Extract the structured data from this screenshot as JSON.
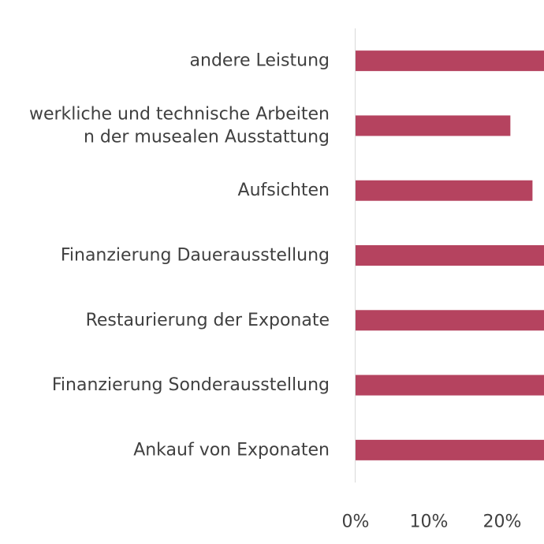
{
  "chart_data": {
    "type": "bar",
    "orientation": "horizontal",
    "categories": [
      {
        "lines": [
          "andere Leistung"
        ]
      },
      {
        "lines": [
          "werkliche und technische Arbeiten",
          "n der musealen Ausstattung"
        ]
      },
      {
        "lines": [
          "Aufsichten"
        ]
      },
      {
        "lines": [
          "Finanzierung Dauerausstellung"
        ]
      },
      {
        "lines": [
          "Restaurierung der Exponate"
        ]
      },
      {
        "lines": [
          "Finanzierung Sonderausstellung"
        ]
      },
      {
        "lines": [
          "Ankauf von Exponaten"
        ]
      }
    ],
    "values": [
      28,
      21,
      24,
      28,
      28,
      28,
      28
    ],
    "x_ticks": [
      "0%",
      "10%",
      "20%"
    ],
    "xlim": [
      0,
      28
    ],
    "grid": false,
    "bar_color": "#b5435f",
    "axis_color": "#d9d9d9",
    "label_color": "#404040"
  }
}
